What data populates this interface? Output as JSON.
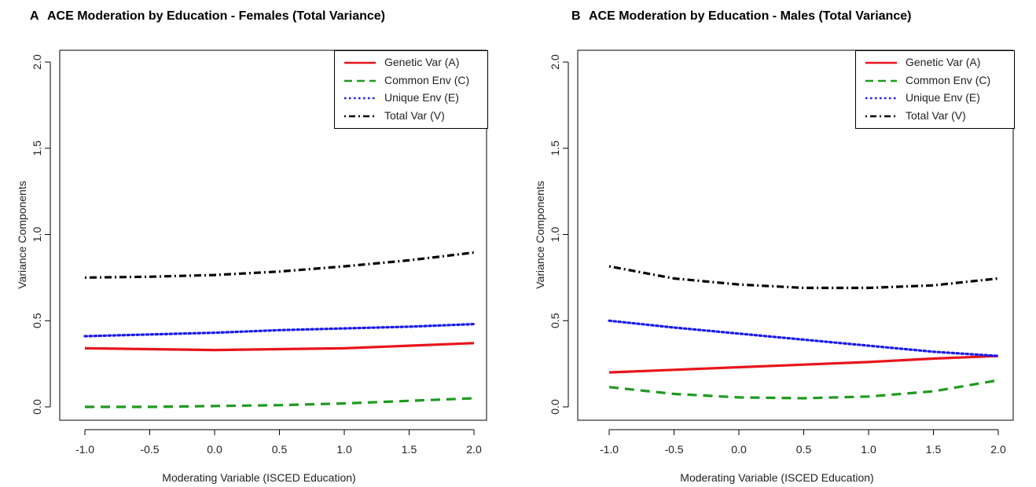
{
  "chart_data": [
    {
      "type": "line",
      "panel_label": "A",
      "title": "ACE Moderation by Education - Females (Total Variance)",
      "xlabel": "Moderating Variable (ISCED Education)",
      "ylabel": "Variance Components",
      "xlim": [
        -1.0,
        2.0
      ],
      "ylim": [
        0.0,
        2.0
      ],
      "xticks": [
        "-1.0",
        "-0.5",
        "0.0",
        "0.5",
        "1.0",
        "1.5",
        "2.0"
      ],
      "yticks": [
        "0.0",
        "0.5",
        "1.0",
        "1.5",
        "2.0"
      ],
      "grid": false,
      "legend_position": "top-right",
      "x": [
        -1.0,
        -0.5,
        0.0,
        0.5,
        1.0,
        1.5,
        2.0
      ],
      "series": [
        {
          "name": "Genetic Var (A)",
          "color": "#e8141c",
          "style": "solid",
          "values": [
            0.34,
            0.335,
            0.33,
            0.335,
            0.34,
            0.355,
            0.37
          ]
        },
        {
          "name": "Common Env (C)",
          "color": "#1e9a1e",
          "style": "dashed",
          "values": [
            0.0,
            0.0,
            0.005,
            0.01,
            0.02,
            0.035,
            0.05
          ]
        },
        {
          "name": "Unique Env (E)",
          "color": "#1a1aee",
          "style": "dotted",
          "values": [
            0.41,
            0.42,
            0.43,
            0.445,
            0.455,
            0.465,
            0.48
          ]
        },
        {
          "name": "Total Var (V)",
          "color": "#000000",
          "style": "dotdash",
          "values": [
            0.75,
            0.755,
            0.765,
            0.785,
            0.815,
            0.85,
            0.895
          ]
        }
      ]
    },
    {
      "type": "line",
      "panel_label": "B",
      "title": "ACE Moderation by Education - Males (Total Variance)",
      "xlabel": "Moderating Variable (ISCED Education)",
      "ylabel": "Variance Components",
      "xlim": [
        -1.0,
        2.0
      ],
      "ylim": [
        0.0,
        2.0
      ],
      "xticks": [
        "-1.0",
        "-0.5",
        "0.0",
        "0.5",
        "1.0",
        "1.5",
        "2.0"
      ],
      "yticks": [
        "0.0",
        "0.5",
        "1.0",
        "1.5",
        "2.0"
      ],
      "grid": false,
      "legend_position": "top-right",
      "x": [
        -1.0,
        -0.5,
        0.0,
        0.5,
        1.0,
        1.5,
        2.0
      ],
      "series": [
        {
          "name": "Genetic Var (A)",
          "color": "#e8141c",
          "style": "solid",
          "values": [
            0.2,
            0.215,
            0.23,
            0.245,
            0.26,
            0.28,
            0.295
          ]
        },
        {
          "name": "Common Env (C)",
          "color": "#1e9a1e",
          "style": "dashed",
          "values": [
            0.115,
            0.075,
            0.055,
            0.05,
            0.06,
            0.09,
            0.155
          ]
        },
        {
          "name": "Unique Env (E)",
          "color": "#1a1aee",
          "style": "dotted",
          "values": [
            0.5,
            0.46,
            0.425,
            0.39,
            0.355,
            0.32,
            0.295
          ]
        },
        {
          "name": "Total Var (V)",
          "color": "#000000",
          "style": "dotdash",
          "values": [
            0.815,
            0.745,
            0.71,
            0.69,
            0.69,
            0.705,
            0.745
          ]
        }
      ]
    }
  ]
}
